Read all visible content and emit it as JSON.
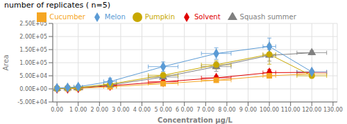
{
  "chart_data": {
    "type": "line",
    "title": "number of replicates ( n=5)",
    "x_label": "Concentration μg/L",
    "y_label": "Area",
    "xlim": [
      -2,
      132
    ],
    "ylim": [
      -50000,
      250000
    ],
    "xticks": [
      {
        "value": 0,
        "label": "0.00"
      },
      {
        "value": 10,
        "label": "1 0.00"
      },
      {
        "value": 20,
        "label": "2 0.00"
      },
      {
        "value": 30,
        "label": "3 0.00"
      },
      {
        "value": 40,
        "label": "4 0.00"
      },
      {
        "value": 50,
        "label": "5 0.00"
      },
      {
        "value": 60,
        "label": "6 0.00"
      },
      {
        "value": 70,
        "label": "7 0.00"
      },
      {
        "value": 80,
        "label": "8 0.00"
      },
      {
        "value": 90,
        "label": "9 0.00"
      },
      {
        "value": 100,
        "label": "100.00"
      },
      {
        "value": 110,
        "label": "110.00"
      },
      {
        "value": 120,
        "label": "120.00"
      },
      {
        "value": 130,
        "label": "130.00"
      }
    ],
    "yticks": [
      {
        "value": -50000,
        "label": "-5.00E+04"
      },
      {
        "value": 0,
        "label": "0.00E+00"
      },
      {
        "value": 50000,
        "label": "5.00E+04"
      },
      {
        "value": 100000,
        "label": "1.00E+05"
      },
      {
        "value": 150000,
        "label": "1.50E+05"
      },
      {
        "value": 200000,
        "label": "2.00E+05"
      },
      {
        "value": 250000,
        "label": "2.50E+05"
      }
    ],
    "grid": true,
    "legend": "top",
    "series": [
      {
        "name": "Solvent",
        "color": "#e00000",
        "marker": "diamond",
        "x": [
          0,
          5,
          10,
          25,
          50,
          75,
          100,
          120
        ],
        "values": [
          1000,
          1500,
          3000,
          12000,
          27000,
          42000,
          62000,
          63000
        ],
        "xerr": [
          0,
          1,
          2,
          3,
          7,
          7,
          3,
          7
        ],
        "yerr": [
          1000,
          2000,
          3000,
          5000,
          5000,
          8000,
          12000,
          6000
        ]
      },
      {
        "name": "Cucumber",
        "color": "#f5a623",
        "marker": "square",
        "x": [
          0,
          5,
          10,
          25,
          50,
          75,
          100,
          120
        ],
        "values": [
          500,
          1000,
          2000,
          8000,
          20000,
          33000,
          50000,
          57000
        ],
        "xerr": [
          0,
          1,
          2,
          3,
          7,
          7,
          3,
          7
        ],
        "yerr": [
          1000,
          2000,
          3000,
          4000,
          4000,
          7000,
          9000,
          5000
        ]
      },
      {
        "name": "Squash summer",
        "color": "#808080",
        "marker": "triangle",
        "x": [
          0,
          5,
          10,
          25,
          50,
          75,
          100,
          120
        ],
        "values": [
          2000,
          3000,
          4000,
          15000,
          45000,
          85000,
          128000,
          138000
        ],
        "xerr": [
          0,
          1,
          2,
          3,
          7,
          7,
          3,
          7
        ],
        "yerr": [
          2000,
          3000,
          5000,
          10000,
          14000,
          18000,
          22000,
          8000
        ]
      },
      {
        "name": "Pumpkin",
        "color": "#c8a800",
        "marker": "circle",
        "x": [
          0,
          5,
          10,
          25,
          50,
          75,
          100,
          120
        ],
        "values": [
          2000,
          3000,
          5000,
          18000,
          52000,
          92000,
          132000,
          50000
        ],
        "xerr": [
          0,
          1,
          2,
          3,
          7,
          7,
          3,
          7
        ],
        "yerr": [
          2000,
          3000,
          5000,
          9000,
          11000,
          16000,
          38000,
          4000
        ]
      },
      {
        "name": "Melon",
        "color": "#5b9bd5",
        "marker": "diamond",
        "x": [
          0,
          5,
          10,
          25,
          50,
          75,
          100,
          120
        ],
        "values": [
          3000,
          5000,
          8000,
          28000,
          85000,
          135000,
          162000,
          65000
        ],
        "xerr": [
          0,
          1,
          2,
          3,
          7,
          7,
          3,
          7
        ],
        "yerr": [
          2000,
          4000,
          7000,
          13000,
          18000,
          22000,
          32000,
          4000
        ]
      }
    ]
  }
}
